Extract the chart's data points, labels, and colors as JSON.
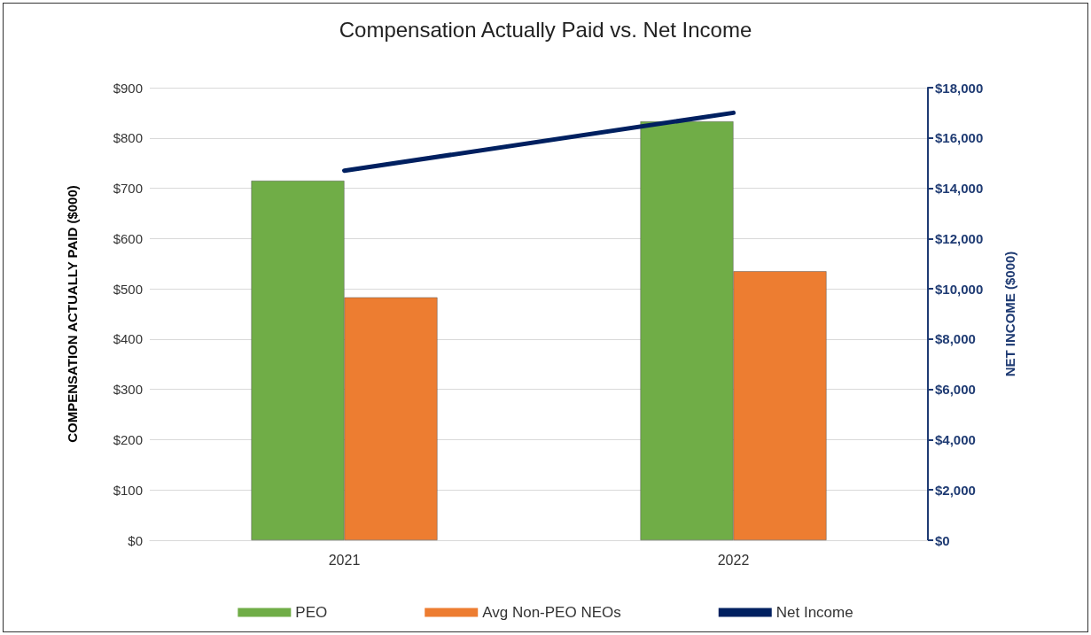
{
  "chart_data": {
    "type": "bar",
    "title": "Compensation Actually Paid vs. Net Income",
    "ylabel": "COMPENSATION ACTUALLY PAID ($000)",
    "y2label": "NET INCOME ($000)",
    "categories": [
      "2021",
      "2022"
    ],
    "series": [
      {
        "name": "PEO",
        "color": "#70ad47",
        "values": [
          715,
          833
        ]
      },
      {
        "name": "Avg Non-PEO NEOs",
        "color": "#ed7d31",
        "values": [
          483,
          535
        ]
      },
      {
        "name": "Net Income",
        "type": "line",
        "axis": "y2",
        "color": "#002060",
        "values": [
          14700,
          17000
        ]
      }
    ],
    "ylim": [
      0,
      900
    ],
    "yticks": [
      {
        "value": 0,
        "label": "$0"
      },
      {
        "value": 100,
        "label": "$100"
      },
      {
        "value": 200,
        "label": "$200"
      },
      {
        "value": 300,
        "label": "$300"
      },
      {
        "value": 400,
        "label": "$400"
      },
      {
        "value": 500,
        "label": "$500"
      },
      {
        "value": 600,
        "label": "$600"
      },
      {
        "value": 700,
        "label": "$700"
      },
      {
        "value": 800,
        "label": "$800"
      },
      {
        "value": 900,
        "label": "$900"
      }
    ],
    "y2lim": [
      0,
      18000
    ],
    "y2ticks": [
      {
        "value": 0,
        "label": "$0"
      },
      {
        "value": 2000,
        "label": "$2,000"
      },
      {
        "value": 4000,
        "label": "$4,000"
      },
      {
        "value": 6000,
        "label": "$6,000"
      },
      {
        "value": 8000,
        "label": "$8,000"
      },
      {
        "value": 10000,
        "label": "$10,000"
      },
      {
        "value": 12000,
        "label": "$12,000"
      },
      {
        "value": 14000,
        "label": "$14,000"
      },
      {
        "value": 16000,
        "label": "$16,000"
      },
      {
        "value": 18000,
        "label": "$18,000"
      }
    ],
    "grid": "y",
    "legend": "bottom",
    "marker": "none",
    "line_style": "solid"
  }
}
